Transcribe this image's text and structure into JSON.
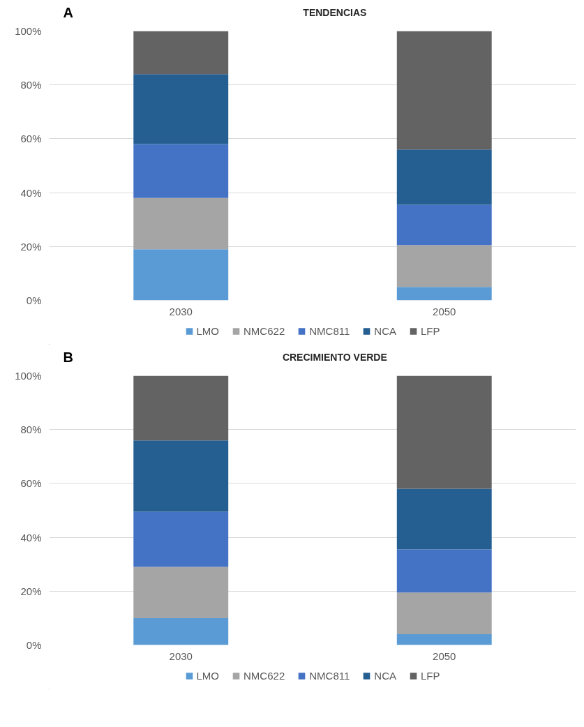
{
  "chart_data": [
    {
      "type": "bar",
      "title": "TENDENCIAS",
      "annotations": [
        "A"
      ],
      "categories": [
        "2030",
        "2050"
      ],
      "stacked": true,
      "grid": "y",
      "legend": "bottom",
      "ylim": [
        0,
        100
      ],
      "yticks": [
        {
          "value": 0,
          "label": "0%"
        },
        {
          "value": 20,
          "label": "20%"
        },
        {
          "value": 40,
          "label": "40%"
        },
        {
          "value": 60,
          "label": "60%"
        },
        {
          "value": 80,
          "label": "80%"
        },
        {
          "value": 100,
          "label": "100%"
        }
      ],
      "series": [
        {
          "name": "LMO",
          "color": "#5b9bd5",
          "values": [
            19,
            5
          ]
        },
        {
          "name": "NMC622",
          "color": "#a5a5a5",
          "values": [
            19,
            15.5
          ]
        },
        {
          "name": "NMC811",
          "color": "#4472c4",
          "values": [
            20,
            15
          ]
        },
        {
          "name": "NCA",
          "color": "#255e91",
          "values": [
            26,
            20.5
          ]
        },
        {
          "name": "LFP",
          "color": "#636363",
          "values": [
            16,
            44
          ]
        }
      ]
    },
    {
      "type": "bar",
      "title": "CRECIMIENTO VERDE",
      "annotations": [
        "B"
      ],
      "categories": [
        "2030",
        "2050"
      ],
      "stacked": true,
      "grid": "y",
      "legend": "bottom",
      "ylim": [
        0,
        100
      ],
      "yticks": [
        {
          "value": 0,
          "label": "0%"
        },
        {
          "value": 20,
          "label": "20%"
        },
        {
          "value": 40,
          "label": "40%"
        },
        {
          "value": 60,
          "label": "60%"
        },
        {
          "value": 80,
          "label": "80%"
        },
        {
          "value": 100,
          "label": "100%"
        }
      ],
      "series": [
        {
          "name": "LMO",
          "color": "#5b9bd5",
          "values": [
            10,
            4
          ]
        },
        {
          "name": "NMC622",
          "color": "#a5a5a5",
          "values": [
            19,
            15.5
          ]
        },
        {
          "name": "NMC811",
          "color": "#4472c4",
          "values": [
            20.5,
            16
          ]
        },
        {
          "name": "NCA",
          "color": "#255e91",
          "values": [
            26.5,
            22.5
          ]
        },
        {
          "name": "LFP",
          "color": "#636363",
          "values": [
            24,
            42
          ]
        }
      ]
    }
  ]
}
